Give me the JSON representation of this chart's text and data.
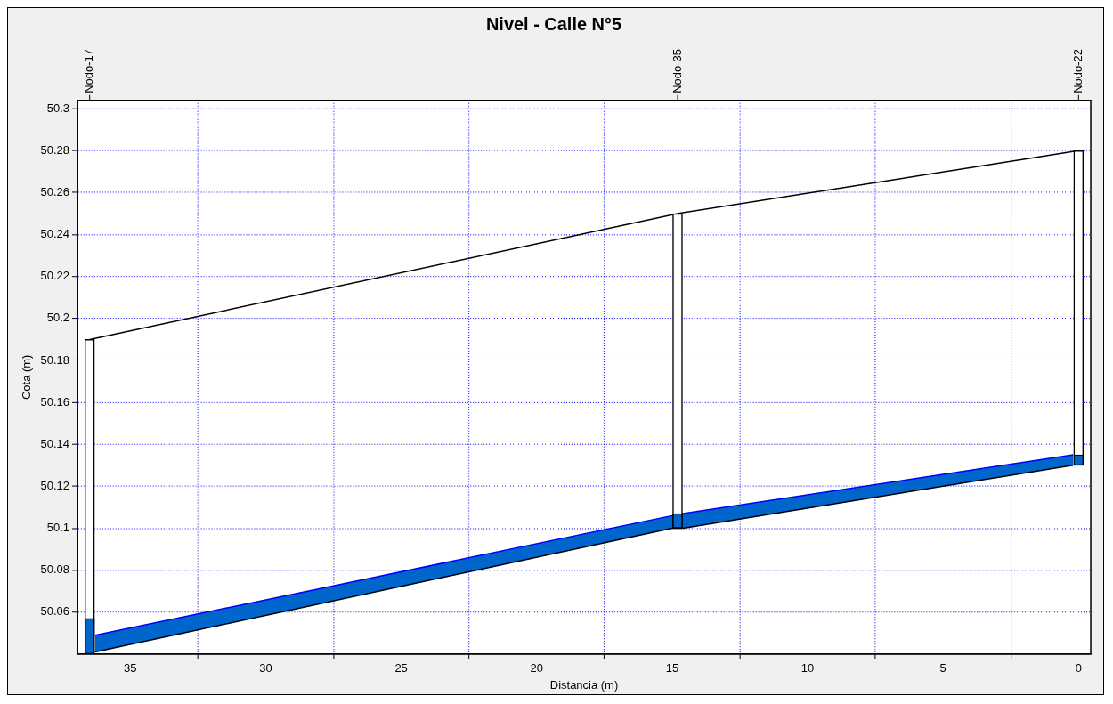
{
  "chart_data": {
    "type": "line",
    "title": "Nivel - Calle N°5",
    "xlabel": "Distancia (m)",
    "ylabel": "Cota (m)",
    "xlim": [
      36.95,
      -0.45
    ],
    "xticks": [
      0,
      5,
      10,
      15,
      20,
      25,
      30,
      35
    ],
    "ylim": [
      50.04,
      50.304
    ],
    "yticks": [
      50.06,
      50.08,
      50.1,
      50.12,
      50.14,
      50.16,
      50.18,
      50.2,
      50.22,
      50.24,
      50.26,
      50.28,
      50.3
    ],
    "annotations": [
      {
        "text": "Nodo-17",
        "x": 36.5
      },
      {
        "text": "Nodo-35",
        "x": 14.8
      },
      {
        "text": "Nodo-22",
        "x": 0
      }
    ],
    "grid": true,
    "marker": "none",
    "series": [
      {
        "color": "#0000ff",
        "x": [
          36.3,
          15.0,
          14.6,
          0.2
        ],
        "values": [
          50.049,
          50.106,
          50.107,
          50.135
        ],
        "lower": [
          50.041,
          50.1,
          50.1,
          50.13
        ],
        "upper": [
          50.049,
          50.106,
          50.107,
          50.135
        ]
      },
      {
        "color": "#000000",
        "x": [
          36.3,
          15.0,
          14.6,
          0.2
        ],
        "values": [
          50.041,
          50.1,
          50.1,
          50.13
        ]
      },
      {
        "color": "#000000",
        "x": [
          36.5,
          14.8,
          0
        ],
        "values": [
          50.19,
          50.25,
          50.28
        ]
      },
      {
        "type": "bar",
        "color": "#ffffff",
        "x": [
          36.5,
          14.8,
          0
        ],
        "base": [
          50.04,
          50.1,
          50.13
        ],
        "values": [
          0.15,
          0.15,
          0.15
        ]
      },
      {
        "type": "bar",
        "color": "#0066cc",
        "x": [
          36.5,
          14.8,
          0
        ],
        "base": [
          50.04,
          50.1,
          50.13
        ],
        "values": [
          0.017,
          0.007,
          0.005
        ]
      }
    ]
  }
}
